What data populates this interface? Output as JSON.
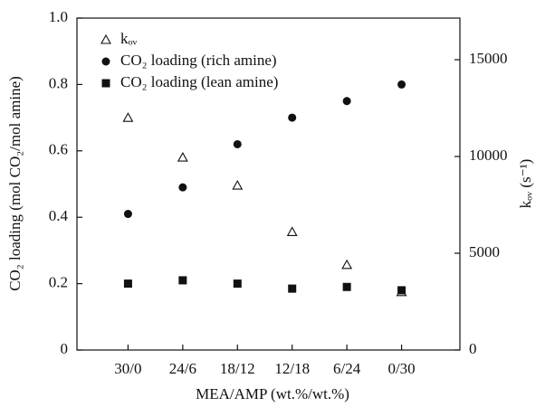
{
  "chart_data": {
    "type": "scatter",
    "x_label": "MEA/AMP (wt.%/wt.%)",
    "y_label": "CO₂ loading (mol CO₂/mol amine)",
    "y2_label": "kₒᵥ (s⁻¹)",
    "categories": [
      "30/0",
      "24/6",
      "18/12",
      "12/18",
      "6/24",
      "0/30"
    ],
    "ylim": [
      0,
      1.0
    ],
    "yticks": [
      0,
      0.2,
      0.4,
      0.6,
      0.8,
      {
        "value": 1.0,
        "label": "1.0"
      }
    ],
    "y2lim": [
      0,
      17150
    ],
    "y2ticks": [
      0,
      5000,
      10000,
      15000
    ],
    "legend": "upper left",
    "series": [
      {
        "name": "kₒᵥ",
        "color": "#111111",
        "marker": "triangle-open",
        "axis": "y2",
        "values": [
          12000,
          9950,
          8500,
          6100,
          4400,
          3000
        ]
      },
      {
        "name": "CO₂ loading (rich amine)",
        "color": "#111111",
        "marker": "circle",
        "values": [
          0.41,
          0.49,
          0.62,
          0.7,
          0.75,
          0.8
        ]
      },
      {
        "name": "CO₂ loading (lean amine)",
        "color": "#111111",
        "marker": "square",
        "values": [
          0.2,
          0.21,
          0.2,
          0.185,
          0.19,
          0.18
        ]
      }
    ]
  }
}
